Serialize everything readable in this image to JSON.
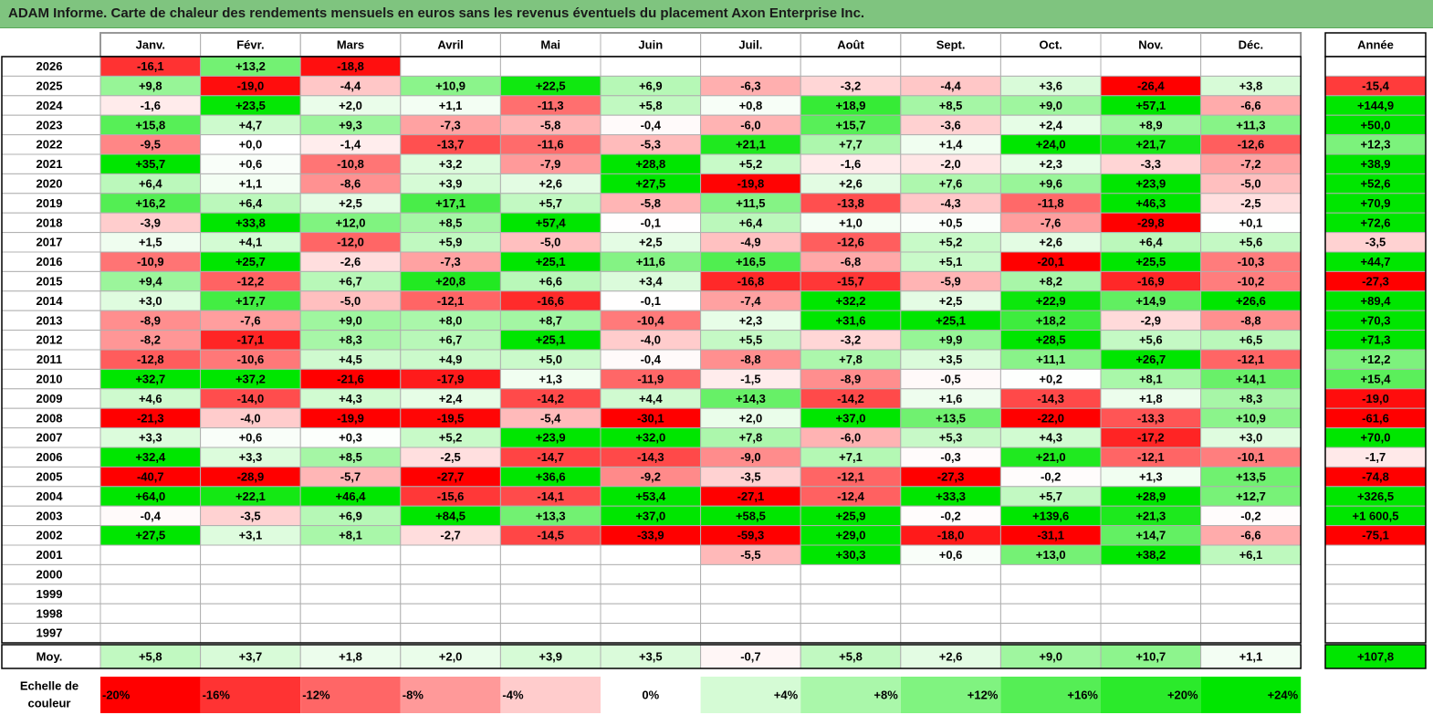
{
  "title": "ADAM Informe. Carte de chaleur des rendements mensuels en euros sans les revenus éventuels du placement Axon Enterprise Inc.",
  "chart_data": {
    "type": "heatmap",
    "title": "ADAM Informe. Carte de chaleur des rendements mensuels en euros sans les revenus éventuels du placement Axon Enterprise Inc.",
    "months": [
      "Janv.",
      "Févr.",
      "Mars",
      "Avril",
      "Mai",
      "Juin",
      "Juil.",
      "Août",
      "Sept.",
      "Oct.",
      "Nov.",
      "Déc."
    ],
    "year_header": "Année",
    "avg_label": "Moy.",
    "rows": [
      {
        "year": "2026",
        "values": [
          "-16,1",
          "+13,2",
          "-18,8",
          "",
          "",
          "",
          "",
          "",
          "",
          "",
          "",
          ""
        ],
        "annual": ""
      },
      {
        "year": "2025",
        "values": [
          "+9,8",
          "-19,0",
          "-4,4",
          "+10,9",
          "+22,5",
          "+6,9",
          "-6,3",
          "-3,2",
          "-4,4",
          "+3,6",
          "-26,4",
          "+3,8"
        ],
        "annual": "-15,4"
      },
      {
        "year": "2024",
        "values": [
          "-1,6",
          "+23,5",
          "+2,0",
          "+1,1",
          "-11,3",
          "+5,8",
          "+0,8",
          "+18,9",
          "+8,5",
          "+9,0",
          "+57,1",
          "-6,6"
        ],
        "annual": "+144,9"
      },
      {
        "year": "2023",
        "values": [
          "+15,8",
          "+4,7",
          "+9,3",
          "-7,3",
          "-5,8",
          "-0,4",
          "-6,0",
          "+15,7",
          "-3,6",
          "+2,4",
          "+8,9",
          "+11,3"
        ],
        "annual": "+50,0"
      },
      {
        "year": "2022",
        "values": [
          "-9,5",
          "+0,0",
          "-1,4",
          "-13,7",
          "-11,6",
          "-5,3",
          "+21,1",
          "+7,7",
          "+1,4",
          "+24,0",
          "+21,7",
          "-12,6"
        ],
        "annual": "+12,3"
      },
      {
        "year": "2021",
        "values": [
          "+35,7",
          "+0,6",
          "-10,8",
          "+3,2",
          "-7,9",
          "+28,8",
          "+5,2",
          "-1,6",
          "-2,0",
          "+2,3",
          "-3,3",
          "-7,2"
        ],
        "annual": "+38,9"
      },
      {
        "year": "2020",
        "values": [
          "+6,4",
          "+1,1",
          "-8,6",
          "+3,9",
          "+2,6",
          "+27,5",
          "-19,8",
          "+2,6",
          "+7,6",
          "+9,6",
          "+23,9",
          "-5,0"
        ],
        "annual": "+52,6"
      },
      {
        "year": "2019",
        "values": [
          "+16,2",
          "+6,4",
          "+2,5",
          "+17,1",
          "+5,7",
          "-5,8",
          "+11,5",
          "-13,8",
          "-4,3",
          "-11,8",
          "+46,3",
          "-2,5"
        ],
        "annual": "+70,9"
      },
      {
        "year": "2018",
        "values": [
          "-3,9",
          "+33,8",
          "+12,0",
          "+8,5",
          "+57,4",
          "-0,1",
          "+6,4",
          "+1,0",
          "+0,5",
          "-7,6",
          "-29,8",
          "+0,1"
        ],
        "annual": "+72,6"
      },
      {
        "year": "2017",
        "values": [
          "+1,5",
          "+4,1",
          "-12,0",
          "+5,9",
          "-5,0",
          "+2,5",
          "-4,9",
          "-12,6",
          "+5,2",
          "+2,6",
          "+6,4",
          "+5,6"
        ],
        "annual": "-3,5"
      },
      {
        "year": "2016",
        "values": [
          "-10,9",
          "+25,7",
          "-2,6",
          "-7,3",
          "+25,1",
          "+11,6",
          "+16,5",
          "-6,8",
          "+5,1",
          "-20,1",
          "+25,5",
          "-10,3"
        ],
        "annual": "+44,7"
      },
      {
        "year": "2015",
        "values": [
          "+9,4",
          "-12,2",
          "+6,7",
          "+20,8",
          "+6,6",
          "+3,4",
          "-16,8",
          "-15,7",
          "-5,9",
          "+8,2",
          "-16,9",
          "-10,2"
        ],
        "annual": "-27,3"
      },
      {
        "year": "2014",
        "values": [
          "+3,0",
          "+17,7",
          "-5,0",
          "-12,1",
          "-16,6",
          "-0,1",
          "-7,4",
          "+32,2",
          "+2,5",
          "+22,9",
          "+14,9",
          "+26,6"
        ],
        "annual": "+89,4"
      },
      {
        "year": "2013",
        "values": [
          "-8,9",
          "-7,6",
          "+9,0",
          "+8,0",
          "+8,7",
          "-10,4",
          "+2,3",
          "+31,6",
          "+25,1",
          "+18,2",
          "-2,9",
          "-8,8"
        ],
        "annual": "+70,3"
      },
      {
        "year": "2012",
        "values": [
          "-8,2",
          "-17,1",
          "+8,3",
          "+6,7",
          "+25,1",
          "-4,0",
          "+5,5",
          "-3,2",
          "+9,9",
          "+28,5",
          "+5,6",
          "+6,5"
        ],
        "annual": "+71,3"
      },
      {
        "year": "2011",
        "values": [
          "-12,8",
          "-10,6",
          "+4,5",
          "+4,9",
          "+5,0",
          "-0,4",
          "-8,8",
          "+7,8",
          "+3,5",
          "+11,1",
          "+26,7",
          "-12,1"
        ],
        "annual": "+12,2"
      },
      {
        "year": "2010",
        "values": [
          "+32,7",
          "+37,2",
          "-21,6",
          "-17,9",
          "+1,3",
          "-11,9",
          "-1,5",
          "-8,9",
          "-0,5",
          "+0,2",
          "+8,1",
          "+14,1"
        ],
        "annual": "+15,4"
      },
      {
        "year": "2009",
        "values": [
          "+4,6",
          "-14,0",
          "+4,3",
          "+2,4",
          "-14,2",
          "+4,4",
          "+14,3",
          "-14,2",
          "+1,6",
          "-14,3",
          "+1,8",
          "+8,3"
        ],
        "annual": "-19,0"
      },
      {
        "year": "2008",
        "values": [
          "-21,3",
          "-4,0",
          "-19,9",
          "-19,5",
          "-5,4",
          "-30,1",
          "+2,0",
          "+37,0",
          "+13,5",
          "-22,0",
          "-13,3",
          "+10,9"
        ],
        "annual": "-61,6"
      },
      {
        "year": "2007",
        "values": [
          "+3,3",
          "+0,6",
          "+0,3",
          "+5,2",
          "+23,9",
          "+32,0",
          "+7,8",
          "-6,0",
          "+5,3",
          "+4,3",
          "-17,2",
          "+3,0"
        ],
        "annual": "+70,0"
      },
      {
        "year": "2006",
        "values": [
          "+32,4",
          "+3,3",
          "+8,5",
          "-2,5",
          "-14,7",
          "-14,3",
          "-9,0",
          "+7,1",
          "-0,3",
          "+21,0",
          "-12,1",
          "-10,1"
        ],
        "annual": "-1,7"
      },
      {
        "year": "2005",
        "values": [
          "-40,7",
          "-28,9",
          "-5,7",
          "-27,7",
          "+36,6",
          "-9,2",
          "-3,5",
          "-12,1",
          "-27,3",
          "-0,2",
          "+1,3",
          "+13,5"
        ],
        "annual": "-74,8"
      },
      {
        "year": "2004",
        "values": [
          "+64,0",
          "+22,1",
          "+46,4",
          "-15,6",
          "-14,1",
          "+53,4",
          "-27,1",
          "-12,4",
          "+33,3",
          "+5,7",
          "+28,9",
          "+12,7"
        ],
        "annual": "+326,5"
      },
      {
        "year": "2003",
        "values": [
          "-0,4",
          "-3,5",
          "+6,9",
          "+84,5",
          "+13,3",
          "+37,0",
          "+58,5",
          "+25,9",
          "-0,2",
          "+139,6",
          "+21,3",
          "-0,2"
        ],
        "annual": "+1 600,5"
      },
      {
        "year": "2002",
        "values": [
          "+27,5",
          "+3,1",
          "+8,1",
          "-2,7",
          "-14,5",
          "-33,9",
          "-59,3",
          "+29,0",
          "-18,0",
          "-31,1",
          "+14,7",
          "-6,6"
        ],
        "annual": "-75,1"
      },
      {
        "year": "2001",
        "values": [
          "",
          "",
          "",
          "",
          "",
          "",
          "-5,5",
          "+30,3",
          "+0,6",
          "+13,0",
          "+38,2",
          "+6,1"
        ],
        "annual": ""
      },
      {
        "year": "2000",
        "values": [
          "",
          "",
          "",
          "",
          "",
          "",
          "",
          "",
          "",
          "",
          "",
          ""
        ],
        "annual": ""
      },
      {
        "year": "1999",
        "values": [
          "",
          "",
          "",
          "",
          "",
          "",
          "",
          "",
          "",
          "",
          "",
          ""
        ],
        "annual": ""
      },
      {
        "year": "1998",
        "values": [
          "",
          "",
          "",
          "",
          "",
          "",
          "",
          "",
          "",
          "",
          "",
          ""
        ],
        "annual": ""
      },
      {
        "year": "1997",
        "values": [
          "",
          "",
          "",
          "",
          "",
          "",
          "",
          "",
          "",
          "",
          "",
          ""
        ],
        "annual": ""
      }
    ],
    "averages": [
      "+5,8",
      "+3,7",
      "+1,8",
      "+2,0",
      "+3,9",
      "+3,5",
      "-0,7",
      "+5,8",
      "+2,6",
      "+9,0",
      "+10,7",
      "+1,1"
    ],
    "avg_annual": "+107,8",
    "scale_label": "Echelle de couleur",
    "scale_label_lines": [
      "Echelle de",
      "couleur"
    ],
    "scale": [
      "-20%",
      "-16%",
      "-12%",
      "-8%",
      "-4%",
      "0%",
      "+4%",
      "+8%",
      "+12%",
      "+16%",
      "+20%",
      "+24%"
    ],
    "scale_values": [
      -20,
      -16,
      -12,
      -8,
      -4,
      0,
      4,
      8,
      12,
      16,
      20,
      24
    ],
    "colors": {
      "neg_full": "#ff0000",
      "pos_full": "#00e600",
      "neutral": "#ffffff",
      "title_bg": "#7fc47f",
      "grid": "#b0b0b0",
      "border": "#000000"
    }
  }
}
